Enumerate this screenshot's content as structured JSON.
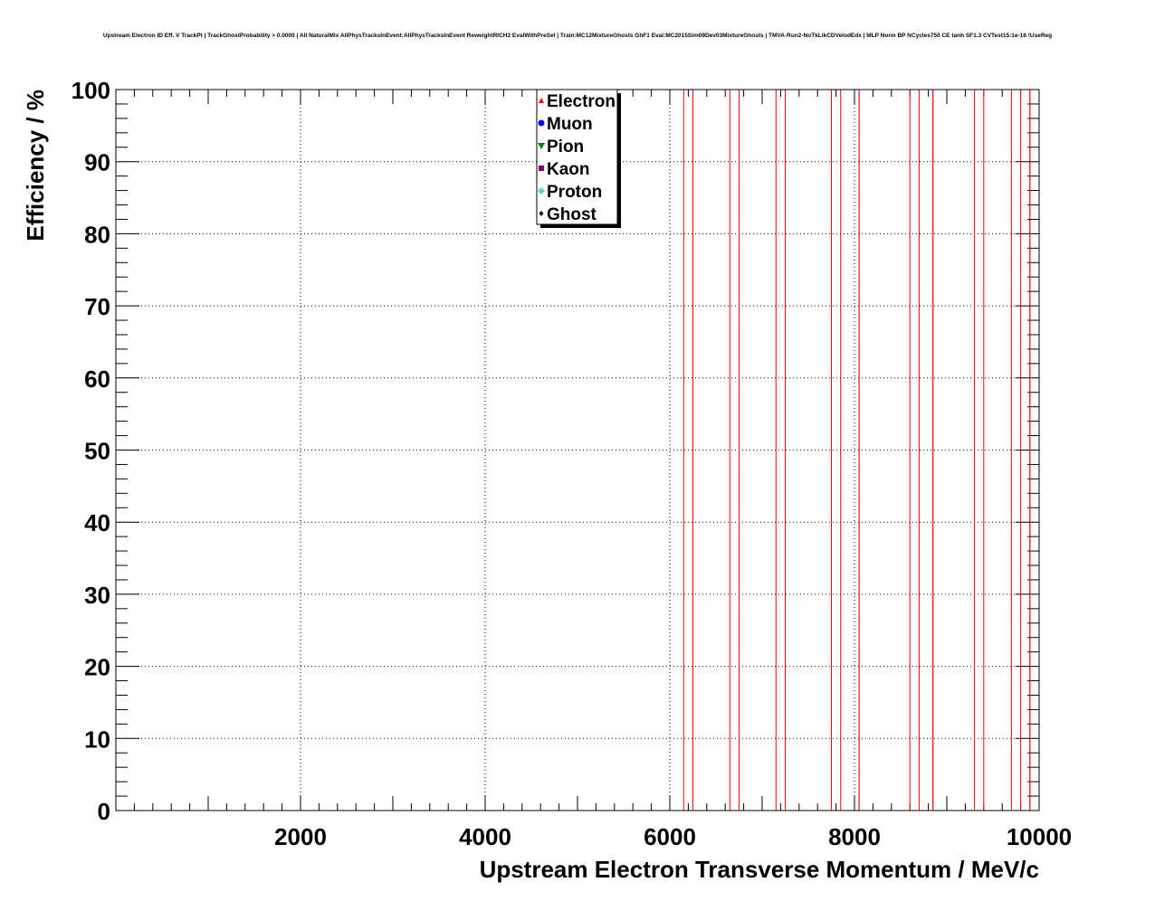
{
  "chart_data": {
    "type": "scatter",
    "title": "Upstream Electron ID Eff. V TrackPt | TrackGhostProbability > 0.0000 | All NaturalMix AllPhysTracksInEvent:AllPhysTracksInEvent ReweightRICH2 EvalWithPreSel | Train:MC12MixtureGhosts GhF1 Eval:MC2015Sim09Dev03MixtureGhosts | TMVA-Run2-NoTkLikCDVelodEdx | MLP Norm BP NCycles750 CE tanh SF1.3 CVTest15:1e-16 !UseReg",
    "xlabel": "Upstream Electron Transverse Momentum / MeV/c",
    "ylabel": "Efficiency / %",
    "xlim": [
      0,
      10000
    ],
    "ylim": [
      0,
      100
    ],
    "x_ticks": [
      2000,
      4000,
      6000,
      8000,
      10000
    ],
    "y_ticks": [
      0,
      10,
      20,
      30,
      40,
      50,
      60,
      70,
      80,
      90,
      100
    ],
    "grid": true,
    "legend_position": "top-center",
    "series": [
      {
        "name": "Electron",
        "color": "#ff0000",
        "marker": "triangle-up",
        "values": []
      },
      {
        "name": "Muon",
        "color": "#0000ff",
        "marker": "circle",
        "values": []
      },
      {
        "name": "Pion",
        "color": "#008000",
        "marker": "triangle-down",
        "values": []
      },
      {
        "name": "Kaon",
        "color": "#800080",
        "marker": "square",
        "values": []
      },
      {
        "name": "Proton",
        "color": "#66cccc",
        "marker": "diamond",
        "values": []
      },
      {
        "name": "Ghost",
        "color": "#000000",
        "marker": "diamond-small",
        "values": []
      }
    ],
    "electron_vertical_bars_x": [
      [
        6150,
        6250
      ],
      [
        6650,
        6750
      ],
      [
        7150,
        7250
      ],
      [
        7750,
        7850
      ],
      [
        8050,
        8050
      ],
      [
        8600,
        8700
      ],
      [
        8850,
        8850
      ],
      [
        9300,
        9400
      ],
      [
        9700,
        9800
      ],
      [
        9900,
        9900
      ]
    ]
  }
}
